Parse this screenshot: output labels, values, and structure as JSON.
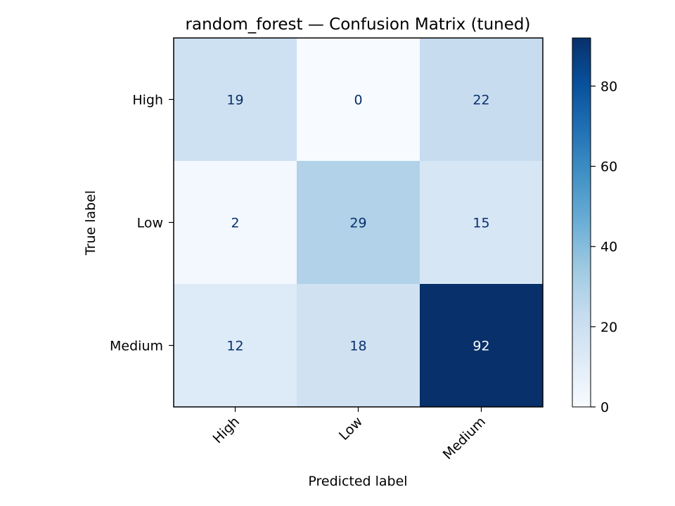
{
  "chart_data": {
    "type": "heatmap",
    "title": "random_forest — Confusion Matrix (tuned)",
    "xlabel": "Predicted label",
    "ylabel": "True label",
    "x_categories": [
      "High",
      "Low",
      "Medium"
    ],
    "y_categories": [
      "High",
      "Low",
      "Medium"
    ],
    "matrix": [
      [
        19,
        0,
        22
      ],
      [
        2,
        29,
        15
      ],
      [
        12,
        18,
        92
      ]
    ],
    "colormap": "Blues",
    "colorbar": {
      "range": [
        0,
        92
      ],
      "ticks": [
        0,
        20,
        40,
        60,
        80
      ]
    },
    "grid": false
  }
}
